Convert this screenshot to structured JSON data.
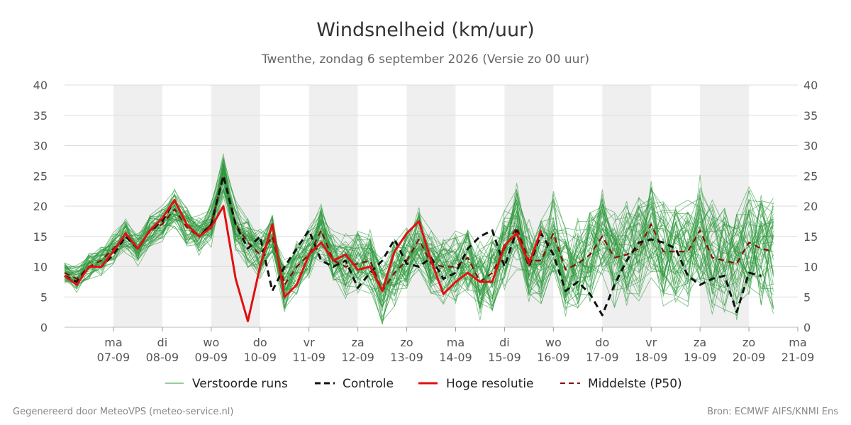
{
  "header": {
    "title": "Windsnelheid (km/uur)",
    "subtitle": "Twenthe, zondag  6 september 2026 (Versie zo 00 uur)"
  },
  "footer": {
    "left": "Gegenereerd door MeteoVPS (meteo-service.nl)",
    "right": "Bron: ECMWF AIFS/KNMI Ens"
  },
  "legend": {
    "items": [
      {
        "key": "ens",
        "label": "Verstoorde runs"
      },
      {
        "key": "control",
        "label": "Controle"
      },
      {
        "key": "hires",
        "label": "Hoge resolutie"
      },
      {
        "key": "p50",
        "label": "Middelste (P50)"
      }
    ]
  },
  "colors": {
    "ensemble": "#2e9a3e",
    "control": "#111111",
    "hires": "#e01010",
    "p50": "#8b0a0a",
    "band": "#efefef",
    "grid": "#dddddd"
  },
  "chart_data": {
    "type": "line",
    "title": "Windsnelheid (km/uur)",
    "subtitle": "Twenthe, zondag  6 september 2026 (Versie zo 00 uur)",
    "xlabel": "",
    "ylabel": "",
    "ylim": [
      0,
      40
    ],
    "y_ticks": [
      0,
      5,
      10,
      15,
      20,
      25,
      30,
      35,
      40
    ],
    "x_range_days": [
      0,
      15
    ],
    "x_ticks": [
      {
        "day": "ma",
        "date": "07-09"
      },
      {
        "day": "di",
        "date": "08-09"
      },
      {
        "day": "wo",
        "date": "09-09"
      },
      {
        "day": "do",
        "date": "10-09"
      },
      {
        "day": "vr",
        "date": "11-09"
      },
      {
        "day": "za",
        "date": "12-09"
      },
      {
        "day": "zo",
        "date": "13-09"
      },
      {
        "day": "ma",
        "date": "14-09"
      },
      {
        "day": "di",
        "date": "15-09"
      },
      {
        "day": "wo",
        "date": "16-09"
      },
      {
        "day": "do",
        "date": "17-09"
      },
      {
        "day": "vr",
        "date": "18-09"
      },
      {
        "day": "za",
        "date": "19-09"
      },
      {
        "day": "zo",
        "date": "20-09"
      },
      {
        "day": "ma",
        "date": "21-09"
      }
    ],
    "grid": true,
    "legend_position": "bottom",
    "step_hours": 6,
    "series": [
      {
        "name": "Controle",
        "style": "dashed",
        "values": [
          8.5,
          7.5,
          10,
          10,
          12,
          15,
          13,
          16,
          17.5,
          21,
          17,
          15,
          17,
          25,
          17,
          13,
          15,
          6,
          10,
          13,
          16,
          11,
          10,
          11,
          6.5,
          9,
          11,
          14.5,
          10.5,
          10,
          11.5,
          8,
          9,
          13,
          15,
          16,
          10,
          16,
          10,
          15.5,
          12,
          6,
          7.5,
          5.5,
          2,
          7,
          11,
          14,
          14.5,
          14,
          13,
          8.5,
          7,
          8,
          8.5,
          2.5,
          9,
          8.5
        ]
      },
      {
        "name": "Hoge resolutie",
        "style": "solid",
        "values": [
          8.5,
          7,
          10,
          10,
          12.5,
          15.5,
          13,
          16,
          18,
          21,
          17,
          15,
          16.5,
          20,
          8,
          1,
          10,
          17,
          5,
          7,
          12,
          14,
          11,
          12,
          9.5,
          10,
          6,
          12.5,
          15.5,
          17.5,
          11,
          5.5,
          7.5,
          9,
          7.5,
          7.5,
          13.5,
          15.5,
          10.5,
          16
        ]
      },
      {
        "name": "Middelste (P50)",
        "style": "dashed",
        "values": [
          9,
          8,
          10,
          11,
          13,
          15,
          13,
          16,
          17,
          19.5,
          16.5,
          15,
          17,
          25,
          17,
          14,
          12,
          15,
          7,
          10,
          12,
          16,
          11,
          10,
          10.5,
          11,
          6,
          9,
          11,
          14.5,
          10.5,
          10,
          10,
          11.5,
          7.5,
          9,
          13,
          16.5,
          11,
          11,
          15.5,
          9.5,
          10.5,
          12,
          15,
          11.5,
          12,
          13,
          17,
          12.5,
          12.5,
          12.5,
          16,
          11.5,
          11,
          10.5,
          14,
          13,
          12.5
        ]
      }
    ],
    "ensemble_members": 50
  }
}
